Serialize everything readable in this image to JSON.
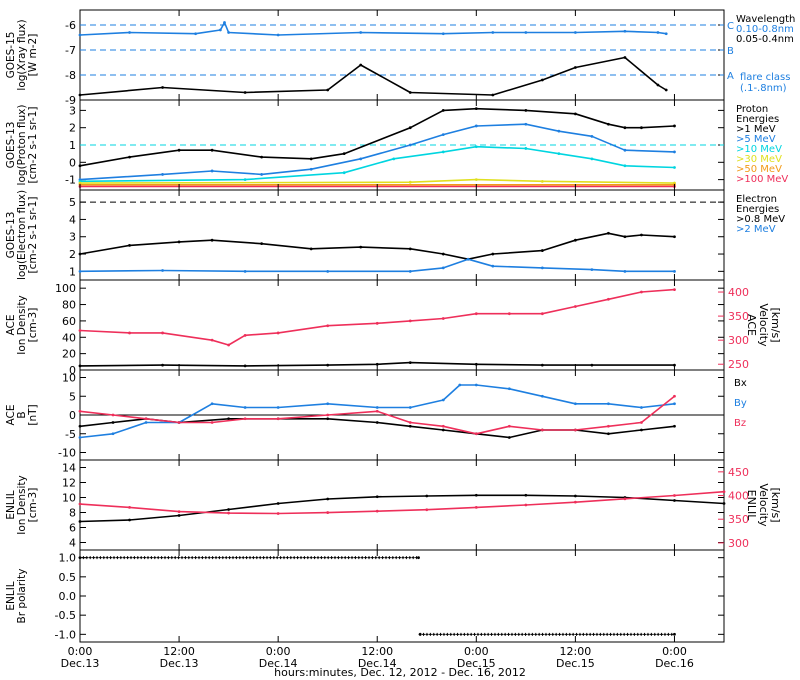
{
  "chart_data": {
    "type": "line",
    "xlabel": "hours:minutes, Dec. 12, 2012 - Dec. 16, 2012",
    "x_ticks": [
      {
        "time": "0:00",
        "date": "Dec.13",
        "hours": 0
      },
      {
        "time": "12:00",
        "date": "Dec.13",
        "hours": 12
      },
      {
        "time": "0:00",
        "date": "Dec.14",
        "hours": 24
      },
      {
        "time": "12:00",
        "date": "Dec.14",
        "hours": 36
      },
      {
        "time": "0:00",
        "date": "Dec.15",
        "hours": 48
      },
      {
        "time": "12:00",
        "date": "Dec.15",
        "hours": 60
      },
      {
        "time": "0:00",
        "date": "Dec.16",
        "hours": 72
      }
    ],
    "xlim": [
      0,
      78
    ],
    "panels": [
      {
        "id": "goes-xray",
        "ylabel": [
          "GOES-15",
          "log(Xray flux)",
          "[W m-2]"
        ],
        "ylim": [
          -9,
          -5.4
        ],
        "yticks": [
          -9,
          -8,
          -7,
          -6
        ],
        "legend_title": [
          "Wavelength"
        ],
        "series": [
          {
            "name": "0.10-0.8nm",
            "color": "#1e7fe0",
            "x": [
              0,
              6,
              14,
              17,
              17.5,
              18,
              24,
              34,
              44,
              50,
              54,
              60,
              66,
              70,
              71
            ],
            "y": [
              -6.4,
              -6.3,
              -6.35,
              -6.2,
              -5.9,
              -6.3,
              -6.4,
              -6.3,
              -6.35,
              -6.3,
              -6.3,
              -6.3,
              -6.25,
              -6.3,
              -6.35
            ]
          },
          {
            "name": "0.05-0.4nm",
            "color": "#000000",
            "x": [
              0,
              10,
              20,
              30,
              34,
              40,
              50,
              56,
              60,
              66,
              70,
              71
            ],
            "y": [
              -8.8,
              -8.5,
              -8.7,
              -8.6,
              -7.6,
              -8.7,
              -8.8,
              -8.2,
              -7.7,
              -7.3,
              -8.4,
              -8.6
            ]
          }
        ],
        "reference_lines": [
          {
            "label": "C",
            "value": -6,
            "color": "#1e7fe0"
          },
          {
            "label": "B",
            "value": -7,
            "color": "#1e7fe0"
          },
          {
            "label": "A",
            "value": -8,
            "color": "#1e7fe0"
          }
        ],
        "notes": [
          "flare class",
          "(.1-.8nm)"
        ]
      },
      {
        "id": "goes-proton",
        "ylabel": [
          "GOES-13",
          "log(Proton flux)",
          "[cm-2 s-1 sr-1]"
        ],
        "ylim": [
          -1.6,
          3.6
        ],
        "yticks": [
          -1,
          0,
          1,
          2,
          3
        ],
        "legend_title": [
          "Proton",
          "Energies"
        ],
        "series": [
          {
            "name": ">1 MeV",
            "color": "#000000",
            "x": [
              0,
              6,
              12,
              16,
              22,
              28,
              32,
              40,
              44,
              48,
              54,
              60,
              64,
              66,
              68,
              72
            ],
            "y": [
              -0.2,
              0.3,
              0.7,
              0.7,
              0.3,
              0.2,
              0.5,
              2.0,
              3.0,
              3.1,
              3.0,
              2.8,
              2.2,
              2.0,
              2.0,
              2.1
            ]
          },
          {
            "name": ">5 MeV",
            "color": "#1e7fe0",
            "x": [
              0,
              10,
              16,
              22,
              28,
              34,
              40,
              44,
              48,
              54,
              58,
              62,
              66,
              72
            ],
            "y": [
              -1.0,
              -0.7,
              -0.5,
              -0.7,
              -0.4,
              0.2,
              1.0,
              1.6,
              2.1,
              2.2,
              1.8,
              1.5,
              0.7,
              0.6
            ]
          },
          {
            "name": ">10 MeV",
            "color": "#00d5e0",
            "x": [
              0,
              20,
              32,
              38,
              44,
              48,
              54,
              58,
              62,
              66,
              72
            ],
            "y": [
              -1.1,
              -1.0,
              -0.6,
              0.2,
              0.6,
              0.9,
              0.8,
              0.5,
              0.2,
              -0.2,
              -0.3
            ]
          },
          {
            "name": ">30 MeV",
            "color": "#e0e020",
            "x": [
              0,
              40,
              48,
              56,
              72
            ],
            "y": [
              -1.2,
              -1.15,
              -1.0,
              -1.1,
              -1.2
            ]
          },
          {
            "name": ">50 MeV",
            "color": "#f29a18",
            "x": [
              0,
              72
            ],
            "y": [
              -1.3,
              -1.3
            ]
          },
          {
            "name": ">100 MeV",
            "color": "#ee2f5a",
            "x": [
              0,
              72
            ],
            "y": [
              -1.4,
              -1.4
            ]
          }
        ],
        "reference_lines": [
          {
            "value": 1,
            "color": "#00d5e0"
          }
        ]
      },
      {
        "id": "goes-electron",
        "ylabel": [
          "GOES-13",
          "log(Electron flux)",
          "[cm-2 s-1 sr-1]"
        ],
        "ylim": [
          0.5,
          5.7
        ],
        "yticks": [
          1,
          2,
          3,
          4,
          5
        ],
        "legend_title": [
          "Electron",
          "Energies"
        ],
        "series": [
          {
            "name": ">0.8 MeV",
            "color": "#000000",
            "x": [
              0,
              6,
              12,
              16,
              22,
              28,
              34,
              40,
              44,
              47,
              50,
              56,
              60,
              64,
              66,
              68,
              72
            ],
            "y": [
              2.0,
              2.5,
              2.7,
              2.8,
              2.6,
              2.3,
              2.4,
              2.3,
              2.0,
              1.7,
              2.0,
              2.2,
              2.8,
              3.2,
              3.0,
              3.1,
              3.0
            ]
          },
          {
            "name": ">2 MeV",
            "color": "#1e7fe0",
            "x": [
              0,
              10,
              20,
              30,
              40,
              44,
              47,
              50,
              56,
              62,
              66,
              72
            ],
            "y": [
              1.0,
              1.05,
              1.0,
              1.0,
              1.0,
              1.2,
              1.7,
              1.3,
              1.2,
              1.1,
              1.0,
              1.0
            ]
          }
        ],
        "reference_lines": [
          {
            "value": 5,
            "color": "#000000"
          }
        ]
      },
      {
        "id": "ace-plasma",
        "ylabel": [
          "ACE",
          "Ion Density",
          "[cm-3]"
        ],
        "ylim": [
          0,
          110
        ],
        "yticks": [
          0,
          20,
          40,
          60,
          80,
          100
        ],
        "right_ylabel": [
          "ACE",
          "Velocity",
          "[km/s]"
        ],
        "right_ylim": [
          238,
          425
        ],
        "right_yticks": [
          250,
          300,
          350,
          400
        ],
        "series": [
          {
            "name": "Ion Density",
            "color": "#000000",
            "axis": "left",
            "x": [
              0,
              10,
              20,
              30,
              36,
              40,
              48,
              56,
              62,
              72
            ],
            "y": [
              5,
              6,
              5,
              6,
              7,
              9,
              7,
              6,
              6,
              6
            ]
          },
          {
            "name": "Velocity",
            "color": "#ee2f5a",
            "axis": "right",
            "x": [
              0,
              6,
              10,
              16,
              18,
              20,
              24,
              30,
              36,
              40,
              44,
              48,
              52,
              56,
              60,
              64,
              68,
              72
            ],
            "y": [
              320,
              315,
              315,
              300,
              290,
              310,
              315,
              330,
              335,
              340,
              345,
              355,
              355,
              355,
              370,
              385,
              400,
              405
            ]
          }
        ]
      },
      {
        "id": "ace-mag",
        "ylabel": [
          "ACE",
          "B",
          "[nT]"
        ],
        "ylim": [
          -12,
          12
        ],
        "yticks": [
          -10,
          -5,
          0,
          5,
          10
        ],
        "series": [
          {
            "name": "Bx",
            "color": "#000000",
            "x": [
              0,
              4,
              8,
              12,
              18,
              24,
              30,
              36,
              40,
              44,
              48,
              52,
              56,
              60,
              64,
              68,
              72
            ],
            "y": [
              -3,
              -2,
              -1,
              -2,
              -1,
              -1,
              -1,
              -2,
              -3,
              -4,
              -5,
              -6,
              -4,
              -4,
              -5,
              -4,
              -3
            ]
          },
          {
            "name": "By",
            "color": "#1e7fe0",
            "x": [
              0,
              4,
              8,
              12,
              16,
              20,
              24,
              30,
              36,
              40,
              44,
              46,
              48,
              52,
              56,
              60,
              64,
              68,
              72
            ],
            "y": [
              -6,
              -5,
              -2,
              -2,
              3,
              2,
              2,
              3,
              2,
              2,
              4,
              8,
              8,
              7,
              5,
              3,
              3,
              2,
              3
            ]
          },
          {
            "name": "Bz",
            "color": "#ee2f5a",
            "x": [
              0,
              4,
              8,
              12,
              16,
              20,
              24,
              30,
              36,
              40,
              44,
              48,
              52,
              56,
              60,
              64,
              68,
              72
            ],
            "y": [
              1,
              0,
              -1,
              -2,
              -2,
              -1,
              -1,
              0,
              1,
              -2,
              -3,
              -5,
              -3,
              -4,
              -4,
              -3,
              -2,
              5
            ]
          }
        ]
      },
      {
        "id": "enlil-plasma",
        "ylabel": [
          "ENLIL",
          "Ion Density",
          "[cm-3]"
        ],
        "ylim": [
          3,
          15
        ],
        "yticks": [
          4,
          6,
          8,
          10,
          12,
          14
        ],
        "right_ylabel": [
          "ENLIL",
          "Velocity",
          "[km/s]"
        ],
        "right_ylim": [
          285,
          475
        ],
        "right_yticks": [
          300,
          350,
          400,
          450
        ],
        "series": [
          {
            "name": "Ion Density",
            "color": "#000000",
            "axis": "left",
            "x": [
              0,
              6,
              12,
              18,
              24,
              30,
              36,
              42,
              48,
              54,
              60,
              66,
              72,
              78
            ],
            "y": [
              6.8,
              7.0,
              7.6,
              8.4,
              9.2,
              9.8,
              10.1,
              10.2,
              10.3,
              10.3,
              10.2,
              10.0,
              9.6,
              9.2
            ]
          },
          {
            "name": "Velocity",
            "color": "#ee2f5a",
            "axis": "right",
            "x": [
              0,
              6,
              12,
              18,
              24,
              30,
              36,
              42,
              48,
              54,
              60,
              66,
              72,
              78
            ],
            "y": [
              382,
              375,
              366,
              363,
              362,
              364,
              367,
              370,
              375,
              380,
              386,
              393,
              400,
              408
            ]
          }
        ]
      },
      {
        "id": "enlil-polarity",
        "ylabel": [
          "ENLIL",
          "Br polarity"
        ],
        "ylim": [
          -1.2,
          1.2
        ],
        "yticks": [
          -1.0,
          -0.5,
          0.0,
          0.5,
          1.0
        ],
        "series": [
          {
            "name": "Br polarity",
            "color": "#000000",
            "x": [
              0,
              41,
              41.2,
              72
            ],
            "y": [
              1.0,
              1.0,
              -1.0,
              -1.0
            ],
            "marker": "+"
          }
        ]
      }
    ],
    "legend": {
      "goes-xray": [
        {
          "text": "Wavelength",
          "color": "#000000"
        },
        {
          "text": "0.10-0.8nm",
          "color": "#1e7fe0"
        },
        {
          "text": "0.05-0.4nm",
          "color": "#000000"
        }
      ],
      "goes-proton": [
        {
          "text": "Proton",
          "color": "#000000"
        },
        {
          "text": "Energies",
          "color": "#000000"
        },
        {
          "text": ">1 MeV",
          "color": "#000000"
        },
        {
          "text": ">5 MeV",
          "color": "#1e7fe0"
        },
        {
          "text": ">10 MeV",
          "color": "#00d5e0"
        },
        {
          "text": ">30 MeV",
          "color": "#e0e020"
        },
        {
          "text": ">50 MeV",
          "color": "#f29a18"
        },
        {
          "text": ">100 MeV",
          "color": "#ee2f5a"
        }
      ],
      "goes-electron": [
        {
          "text": "Electron",
          "color": "#000000"
        },
        {
          "text": "Energies",
          "color": "#000000"
        },
        {
          "text": ">0.8 MeV",
          "color": "#000000"
        },
        {
          "text": ">2 MeV",
          "color": "#1e7fe0"
        }
      ],
      "ace-mag": [
        {
          "text": "Bx",
          "color": "#000000"
        },
        {
          "text": "By",
          "color": "#1e7fe0"
        },
        {
          "text": "Bz",
          "color": "#ee2f5a"
        }
      ]
    }
  }
}
